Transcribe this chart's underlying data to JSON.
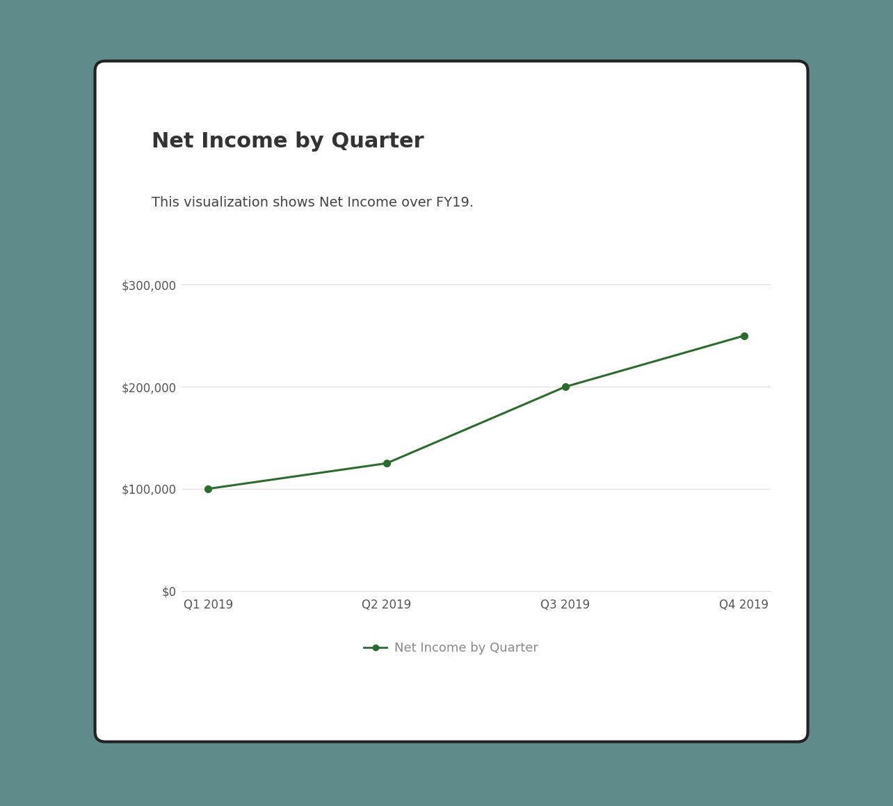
{
  "title": "Net Income by Quarter",
  "subtitle": "This visualization shows Net Income over FY19.",
  "categories": [
    "Q1 2019",
    "Q2 2019",
    "Q3 2019",
    "Q4 2019"
  ],
  "values": [
    100000,
    125000,
    200000,
    250000
  ],
  "line_color": "#2d6a2d",
  "marker_color": "#2d6a2d",
  "background_color": "#ffffff",
  "outer_background": "#5f8b8b",
  "title_fontsize": 22,
  "subtitle_fontsize": 14,
  "tick_fontsize": 12,
  "legend_label": "Net Income by Quarter",
  "legend_fontsize": 13,
  "ylim": [
    0,
    320000
  ],
  "yticks": [
    0,
    100000,
    200000,
    300000
  ],
  "ytick_labels": [
    "$0",
    "$100,000",
    "$200,000",
    "$300,000"
  ],
  "grid_color": "#dddddd",
  "title_color": "#333333",
  "subtitle_color": "#444444",
  "tick_color": "#555555",
  "legend_color": "#888888",
  "card_border_color": "#222222",
  "card_shadow_color": "#333333"
}
